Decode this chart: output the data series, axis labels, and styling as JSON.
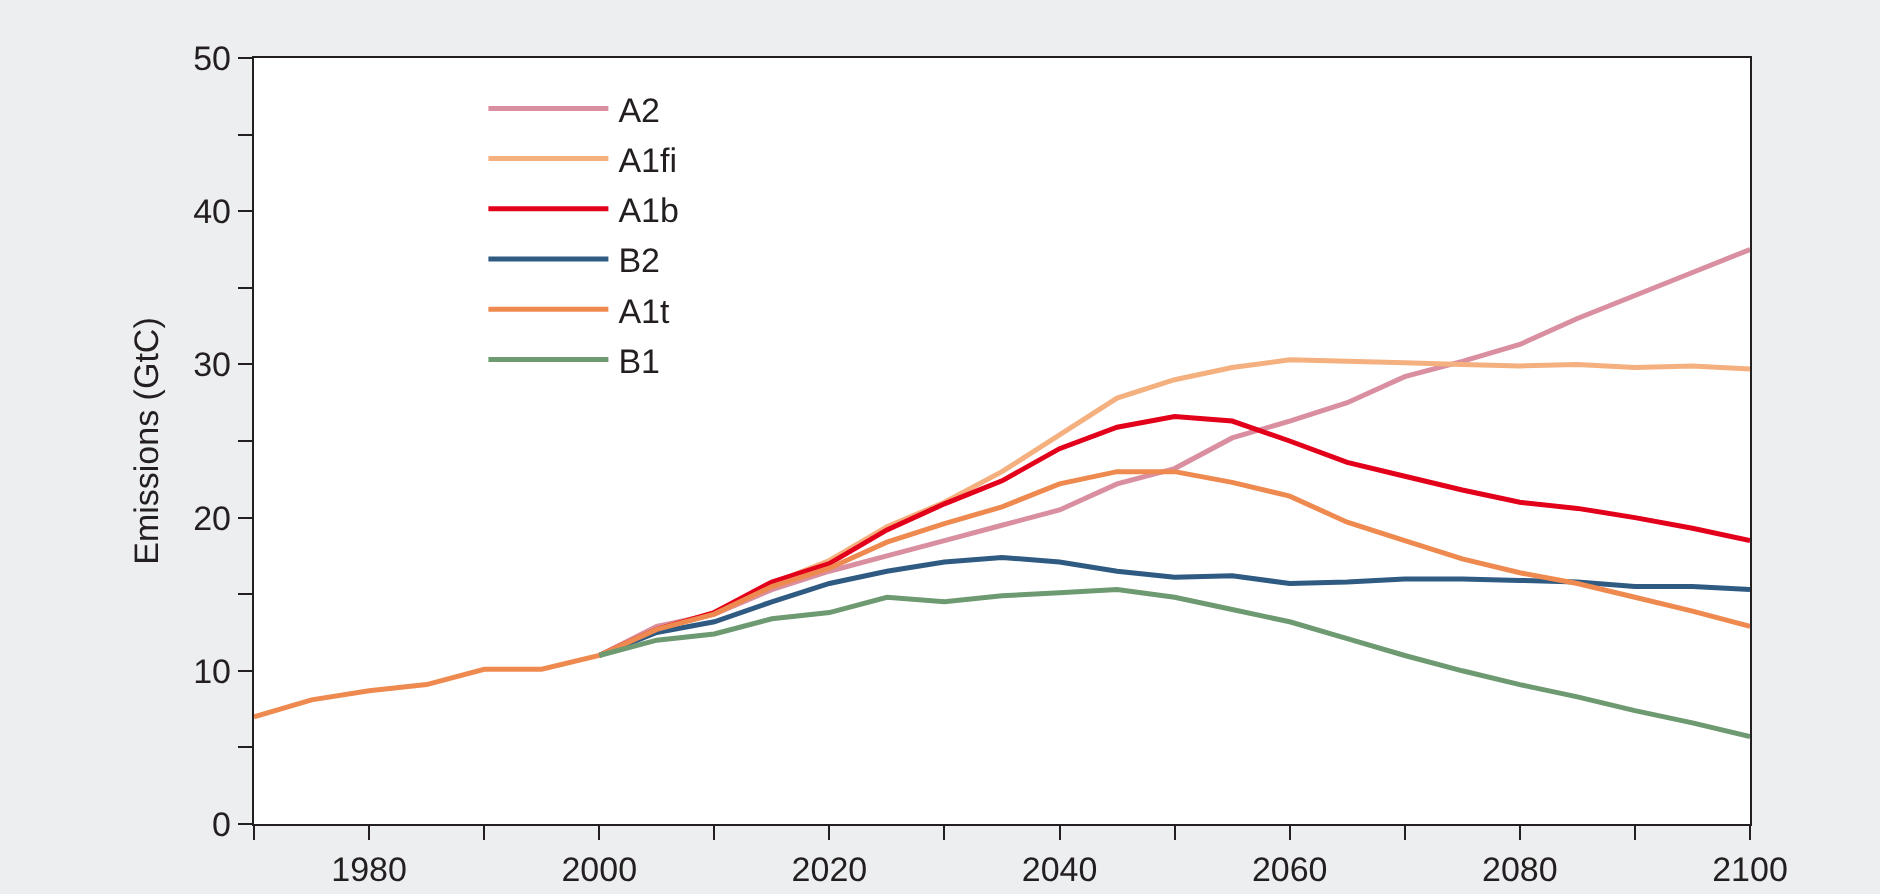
{
  "chart_data": {
    "type": "line",
    "ylabel": "Emissions (GtC)",
    "x": [
      1970,
      1975,
      1980,
      1985,
      1990,
      1995,
      2000,
      2005,
      2010,
      2015,
      2020,
      2025,
      2030,
      2035,
      2040,
      2045,
      2050,
      2055,
      2060,
      2065,
      2070,
      2075,
      2080,
      2085,
      2090,
      2095,
      2100
    ],
    "series": [
      {
        "name": "A2",
        "color": "#d98fa0",
        "values": [
          null,
          null,
          null,
          null,
          null,
          null,
          11.0,
          12.9,
          13.7,
          15.3,
          16.5,
          17.5,
          18.5,
          19.5,
          20.5,
          22.2,
          23.2,
          25.2,
          26.3,
          27.5,
          29.2,
          30.2,
          31.3,
          33.0,
          34.5,
          36.0,
          37.5
        ]
      },
      {
        "name": "A1fi",
        "color": "#f4b07f",
        "values": [
          null,
          null,
          null,
          null,
          null,
          null,
          11.0,
          12.7,
          13.8,
          15.7,
          17.2,
          19.4,
          21.0,
          23.0,
          25.4,
          27.8,
          29.0,
          29.8,
          30.3,
          30.2,
          30.1,
          30.0,
          29.9,
          30.0,
          29.8,
          29.9,
          29.7
        ]
      },
      {
        "name": "A1b",
        "color": "#e3001b",
        "values": [
          null,
          null,
          null,
          null,
          null,
          null,
          11.0,
          12.7,
          13.8,
          15.8,
          17.0,
          19.2,
          20.9,
          22.4,
          24.5,
          25.9,
          26.6,
          26.3,
          25.0,
          23.6,
          22.7,
          21.8,
          21.0,
          20.6,
          20.0,
          19.3,
          18.5
        ]
      },
      {
        "name": "B2",
        "color": "#2f5a82",
        "values": [
          null,
          null,
          null,
          null,
          null,
          null,
          11.0,
          12.5,
          13.2,
          14.5,
          15.7,
          16.5,
          17.1,
          17.4,
          17.1,
          16.5,
          16.1,
          16.2,
          15.7,
          15.8,
          16.0,
          16.0,
          15.9,
          15.8,
          15.5,
          15.5,
          15.3
        ]
      },
      {
        "name": "A1t",
        "color": "#ee8a4f",
        "values": [
          7.0,
          8.1,
          8.7,
          9.1,
          10.1,
          10.1,
          11.0,
          12.7,
          13.7,
          15.5,
          16.7,
          18.4,
          19.6,
          20.7,
          22.2,
          23.0,
          23.0,
          22.3,
          21.4,
          19.7,
          18.5,
          17.3,
          16.4,
          15.7,
          14.8,
          13.9,
          12.9
        ]
      },
      {
        "name": "B1",
        "color": "#6e9a72",
        "values": [
          null,
          null,
          null,
          null,
          null,
          null,
          11.0,
          12.0,
          12.4,
          13.4,
          13.8,
          14.8,
          14.5,
          14.9,
          15.1,
          15.3,
          14.8,
          14.0,
          13.2,
          12.1,
          11.0,
          10.0,
          9.1,
          8.3,
          7.4,
          6.6,
          5.7
        ]
      }
    ],
    "xlim": [
      1970,
      2100
    ],
    "xticks": [
      {
        "value": 1970,
        "label": null
      },
      1980,
      {
        "value": 1990,
        "label": null
      },
      2000,
      {
        "value": 2010,
        "label": null
      },
      2020,
      {
        "value": 2030,
        "label": null
      },
      2040,
      {
        "value": 2050,
        "label": null
      },
      2060,
      {
        "value": 2070,
        "label": null
      },
      2080,
      {
        "value": 2090,
        "label": null
      },
      2100
    ],
    "ylim": [
      0,
      50
    ],
    "yticks": [
      0,
      {
        "value": 5,
        "label": null
      },
      10,
      {
        "value": 15,
        "label": null
      },
      20,
      {
        "value": 25,
        "label": null
      },
      30,
      {
        "value": 35,
        "label": null
      },
      40,
      {
        "value": 45,
        "label": null
      },
      50
    ],
    "grid": false,
    "legend": "top left",
    "marker": "none",
    "line_style": "solid"
  }
}
